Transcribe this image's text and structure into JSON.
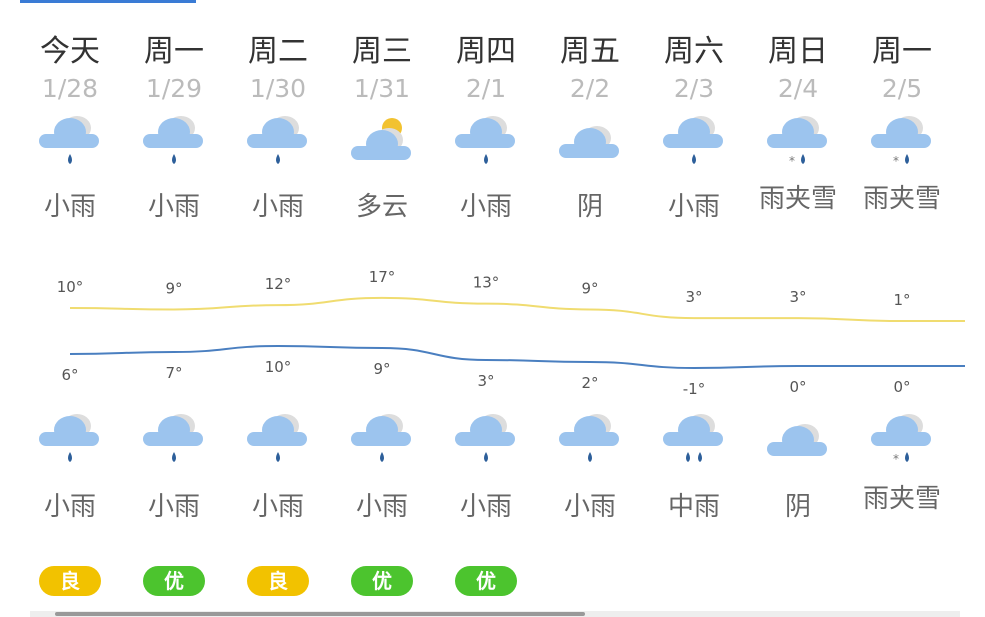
{
  "days": [
    {
      "day": "今天",
      "date": "1/28",
      "day_icon": "light-rain",
      "day_desc": "小雨",
      "night_icon": "light-rain",
      "night_desc": "小雨",
      "high": "10°",
      "low": "6°",
      "aqi": "良",
      "aqi_color": "#f2c200"
    },
    {
      "day": "周一",
      "date": "1/29",
      "day_icon": "light-rain",
      "day_desc": "小雨",
      "night_icon": "light-rain",
      "night_desc": "小雨",
      "high": "9°",
      "low": "7°",
      "aqi": "优",
      "aqi_color": "#4cc42e"
    },
    {
      "day": "周二",
      "date": "1/30",
      "day_icon": "light-rain",
      "day_desc": "小雨",
      "night_icon": "light-rain",
      "night_desc": "小雨",
      "high": "12°",
      "low": "10°",
      "aqi": "良",
      "aqi_color": "#f2c200"
    },
    {
      "day": "周三",
      "date": "1/31",
      "day_icon": "partly-cloudy",
      "day_desc": "多云",
      "night_icon": "light-rain",
      "night_desc": "小雨",
      "high": "17°",
      "low": "9°",
      "aqi": "优",
      "aqi_color": "#4cc42e"
    },
    {
      "day": "周四",
      "date": "2/1",
      "day_icon": "light-rain",
      "day_desc": "小雨",
      "night_icon": "light-rain",
      "night_desc": "小雨",
      "high": "13°",
      "low": "3°",
      "aqi": "优",
      "aqi_color": "#4cc42e"
    },
    {
      "day": "周五",
      "date": "2/2",
      "day_icon": "overcast",
      "day_desc": "阴",
      "night_icon": "light-rain",
      "night_desc": "小雨",
      "high": "9°",
      "low": "2°"
    },
    {
      "day": "周六",
      "date": "2/3",
      "day_icon": "light-rain",
      "day_desc": "小雨",
      "night_icon": "moderate-rain",
      "night_desc": "中雨",
      "high": "3°",
      "low": "-1°"
    },
    {
      "day": "周日",
      "date": "2/4",
      "day_icon": "sleet",
      "day_desc": "雨夹雪",
      "night_icon": "overcast",
      "night_desc": "阴",
      "high": "3°",
      "low": "0°"
    },
    {
      "day": "周一",
      "date": "2/5",
      "day_icon": "sleet",
      "day_desc": "雨夹雪",
      "night_icon": "sleet",
      "night_desc": "雨夹雪",
      "high": "1°",
      "low": "0°"
    }
  ],
  "highs": [
    10,
    9,
    12,
    17,
    13,
    9,
    3,
    3,
    1
  ],
  "lows": [
    6,
    7,
    10,
    9,
    3,
    2,
    -1,
    0,
    0
  ],
  "colors": {
    "accent": "#3a7bd5",
    "high_line": "#f0dc70",
    "low_line": "#4a7fc0",
    "cloud": "#9cc4ee",
    "drop": "#2d5f9a"
  }
}
